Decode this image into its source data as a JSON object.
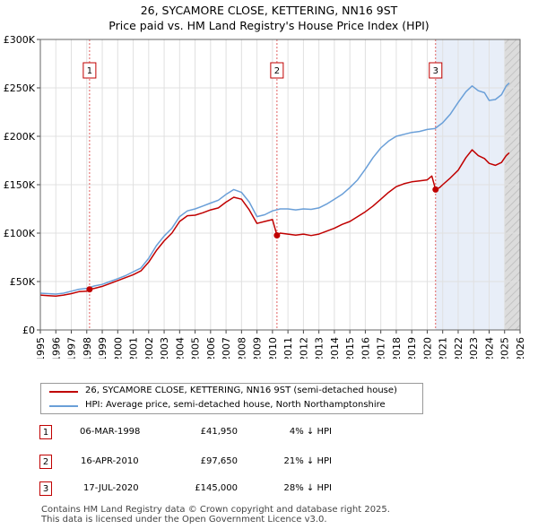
{
  "title_line1": "26, SYCAMORE CLOSE, KETTERING, NN16 9ST",
  "title_line2": "Price paid vs. HM Land Registry's House Price Index (HPI)",
  "colors": {
    "property": "#c00000",
    "hpi": "#6a9fd8",
    "future_shade": "#dcdcdc",
    "sale_shade": "#e8eef8",
    "grid": "#e0e0e0",
    "sale_line": "#e06060"
  },
  "chart_data": {
    "type": "line",
    "title": "Price paid vs. HM Land Registry's House Price Index (HPI)",
    "xlabel": "",
    "ylabel": "",
    "xlim": [
      1995,
      2026
    ],
    "ylim": [
      0,
      300000
    ],
    "x_ticks": [
      1995,
      1996,
      1997,
      1998,
      1999,
      2000,
      2001,
      2002,
      2003,
      2004,
      2005,
      2006,
      2007,
      2008,
      2009,
      2010,
      2011,
      2012,
      2013,
      2014,
      2015,
      2016,
      2017,
      2018,
      2019,
      2020,
      2021,
      2022,
      2023,
      2024,
      2025,
      2026
    ],
    "y_ticks": [
      0,
      50000,
      100000,
      150000,
      200000,
      250000,
      300000
    ],
    "y_tick_labels": [
      "£0",
      "£50K",
      "£100K",
      "£150K",
      "£200K",
      "£250K",
      "£300K"
    ],
    "future_from": 2025.0,
    "series": [
      {
        "name": "26, SYCAMORE CLOSE, KETTERING, NN16 9ST (semi-detached house)",
        "color": "#c00000",
        "x": [
          1995.0,
          1995.5,
          1996.0,
          1996.5,
          1997.0,
          1997.5,
          1998.0,
          1998.18,
          1998.5,
          1999.0,
          1999.5,
          2000.0,
          2000.5,
          2001.0,
          2001.5,
          2002.0,
          2002.5,
          2003.0,
          2003.5,
          2004.0,
          2004.5,
          2005.0,
          2005.5,
          2006.0,
          2006.5,
          2007.0,
          2007.5,
          2008.0,
          2008.5,
          2009.0,
          2009.5,
          2010.0,
          2010.29,
          2010.5,
          2011.0,
          2011.5,
          2012.0,
          2012.5,
          2013.0,
          2013.5,
          2014.0,
          2014.5,
          2015.0,
          2015.5,
          2016.0,
          2016.5,
          2017.0,
          2017.5,
          2018.0,
          2018.5,
          2019.0,
          2019.5,
          2020.0,
          2020.3,
          2020.54,
          2020.8,
          2021.0,
          2021.5,
          2022.0,
          2022.5,
          2022.9,
          2023.3,
          2023.7,
          2024.0,
          2024.4,
          2024.8,
          2025.1,
          2025.3
        ],
        "values": [
          36000,
          35500,
          35000,
          36000,
          37500,
          39500,
          40000,
          41950,
          43000,
          45000,
          48000,
          51000,
          54000,
          57000,
          61000,
          70000,
          82000,
          92000,
          100000,
          112000,
          118000,
          118500,
          121000,
          124000,
          126000,
          132000,
          137000,
          135000,
          124000,
          110000,
          112000,
          114000,
          97650,
          100000,
          99000,
          98000,
          99000,
          97500,
          99000,
          102000,
          105000,
          109000,
          112000,
          117000,
          122000,
          128000,
          135000,
          142000,
          148000,
          151000,
          153000,
          154000,
          155000,
          159000,
          145000,
          147000,
          150000,
          157000,
          165000,
          178000,
          186000,
          180000,
          177000,
          172000,
          170000,
          173000,
          180000,
          183000
        ]
      },
      {
        "name": "HPI: Average price, semi-detached house, North Northamptonshire",
        "color": "#6a9fd8",
        "x": [
          1995.0,
          1995.5,
          1996.0,
          1996.5,
          1997.0,
          1997.5,
          1998.0,
          1998.5,
          1999.0,
          1999.5,
          2000.0,
          2000.5,
          2001.0,
          2001.5,
          2002.0,
          2002.5,
          2003.0,
          2003.5,
          2004.0,
          2004.5,
          2005.0,
          2005.5,
          2006.0,
          2006.5,
          2007.0,
          2007.5,
          2008.0,
          2008.5,
          2009.0,
          2009.5,
          2010.0,
          2010.5,
          2011.0,
          2011.5,
          2012.0,
          2012.5,
          2013.0,
          2013.5,
          2014.0,
          2014.5,
          2015.0,
          2015.5,
          2016.0,
          2016.5,
          2017.0,
          2017.5,
          2018.0,
          2018.5,
          2019.0,
          2019.5,
          2020.0,
          2020.5,
          2021.0,
          2021.5,
          2022.0,
          2022.5,
          2022.9,
          2023.3,
          2023.7,
          2024.0,
          2024.4,
          2024.8,
          2025.1,
          2025.3
        ],
        "values": [
          38000,
          37500,
          37000,
          38000,
          40000,
          42000,
          43000,
          45500,
          47000,
          50000,
          53000,
          56000,
          60000,
          64000,
          74000,
          87000,
          97000,
          105000,
          117000,
          123000,
          125000,
          128000,
          131000,
          134000,
          140000,
          145000,
          142000,
          132000,
          117000,
          119000,
          123000,
          125000,
          125000,
          124000,
          125000,
          124500,
          126000,
          130000,
          135000,
          140000,
          147000,
          155000,
          166000,
          178000,
          188000,
          195000,
          200000,
          202000,
          204000,
          205000,
          207000,
          208000,
          214000,
          223000,
          235000,
          246000,
          252000,
          247000,
          245000,
          237000,
          238000,
          243000,
          252000,
          255000
        ]
      }
    ],
    "sales": [
      {
        "label": "1",
        "x": 1998.18,
        "value": 41950
      },
      {
        "label": "2",
        "x": 2010.29,
        "value": 97650
      },
      {
        "label": "3",
        "x": 2020.54,
        "value": 145000
      }
    ],
    "legend_position": "bottom"
  },
  "legend": {
    "property_label": "26, SYCAMORE CLOSE, KETTERING, NN16 9ST (semi-detached house)",
    "hpi_label": "HPI: Average price, semi-detached house, North Northamptonshire"
  },
  "sales_table": [
    {
      "num": "1",
      "date": "06-MAR-1998",
      "price": "£41,950",
      "pct": "4% ↓ HPI"
    },
    {
      "num": "2",
      "date": "16-APR-2010",
      "price": "£97,650",
      "pct": "21% ↓ HPI"
    },
    {
      "num": "3",
      "date": "17-JUL-2020",
      "price": "£145,000",
      "pct": "28% ↓ HPI"
    }
  ],
  "footer_line1": "Contains HM Land Registry data © Crown copyright and database right 2025.",
  "footer_line2": "This data is licensed under the Open Government Licence v3.0."
}
